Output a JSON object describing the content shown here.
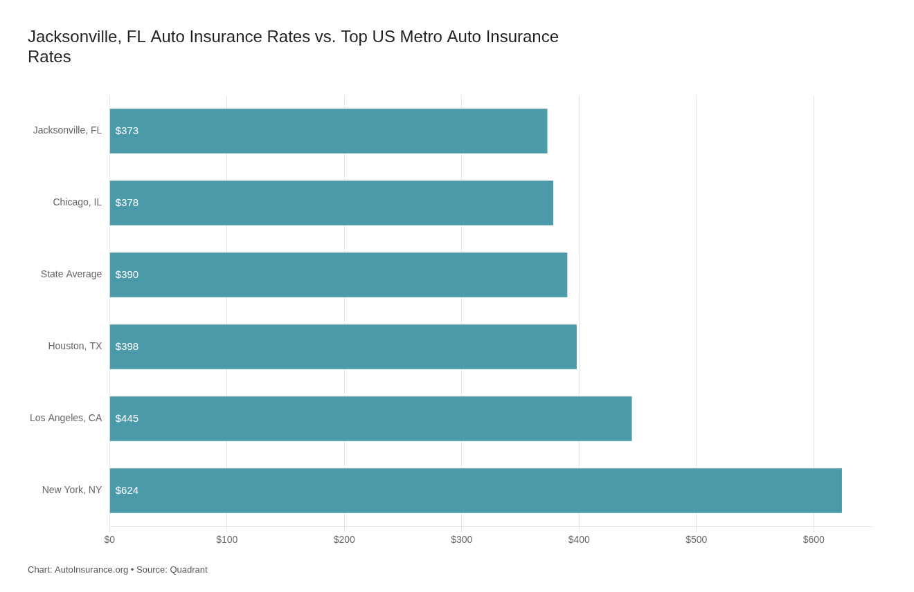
{
  "chart_data": {
    "type": "bar",
    "orientation": "horizontal",
    "title": "Jacksonville, FL Auto Insurance Rates vs. Top US Metro Auto Insurance\nRates",
    "annotations": [
      "Chart: AutoInsurance.org • Source: Quadrant"
    ],
    "categories": [
      "Jacksonville, FL",
      "Chicago, IL",
      "State Average",
      "Houston, TX",
      "Los Angeles, CA",
      "New York, NY"
    ],
    "values": [
      373,
      378,
      390,
      398,
      445,
      624
    ],
    "value_labels": [
      "$373",
      "$378",
      "$390",
      "$398",
      "$445",
      "$624"
    ],
    "data_labels": true,
    "color": "#4a9aaa",
    "xlim": [
      0,
      650
    ],
    "xticks": [
      {
        "value": 0,
        "label": "$0"
      },
      {
        "value": 100,
        "label": "$100"
      },
      {
        "value": 200,
        "label": "$200"
      },
      {
        "value": 300,
        "label": "$300"
      },
      {
        "value": 400,
        "label": "$400"
      },
      {
        "value": 500,
        "label": "$500"
      },
      {
        "value": 600,
        "label": "$600"
      }
    ],
    "grid": true,
    "legend": false
  }
}
